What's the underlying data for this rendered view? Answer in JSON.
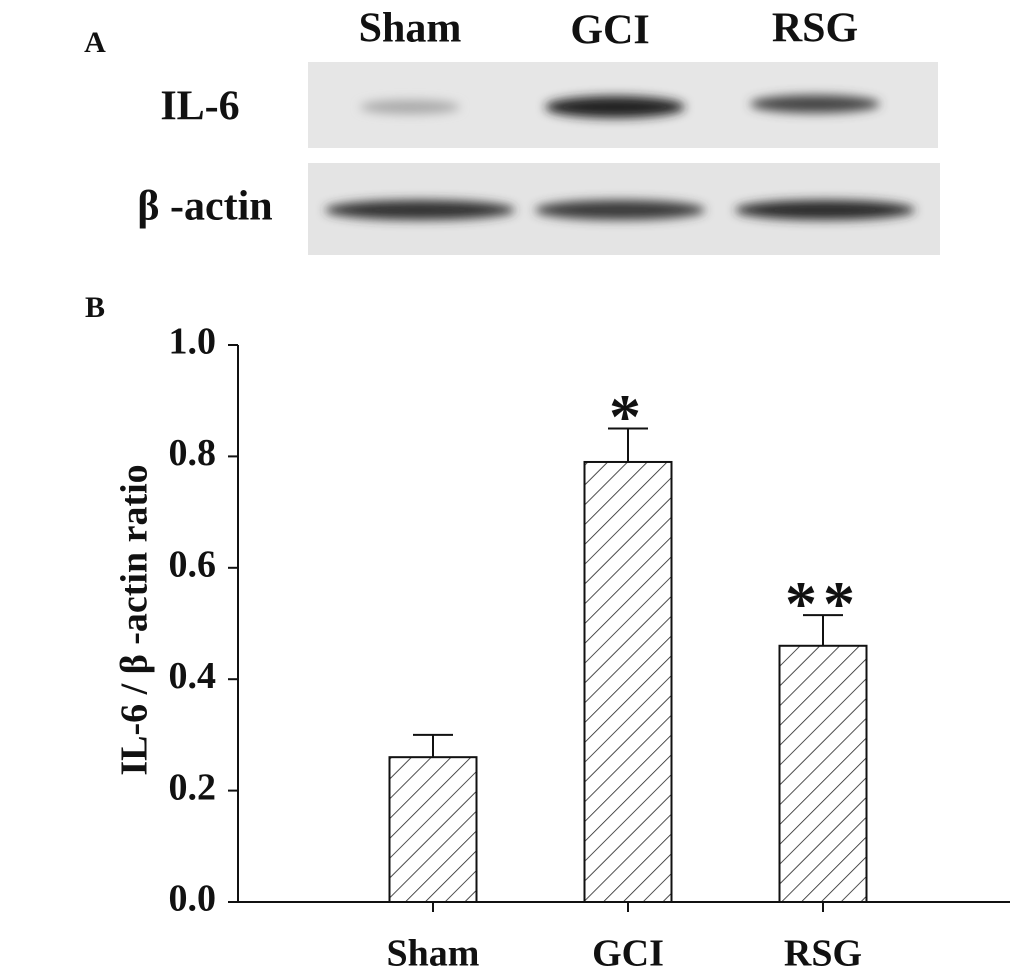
{
  "panel_a": {
    "label": "A",
    "lanes": [
      "Sham",
      "GCI",
      "RSG"
    ],
    "rows": [
      "IL-6",
      "β -actin"
    ]
  },
  "panel_b": {
    "label": "B"
  },
  "chart_data": {
    "type": "bar",
    "y_label": "IL-6 / β -actin ratio",
    "categories": [
      "Sham",
      "GCI",
      "RSG"
    ],
    "values": [
      0.26,
      0.79,
      0.46
    ],
    "errors": [
      0.04,
      0.06,
      0.055
    ],
    "annotations": [
      null,
      "*",
      "**"
    ],
    "color": "#ffffff",
    "hatch": true,
    "ylim": [
      0,
      1.0
    ],
    "yticks": [
      {
        "value": 0,
        "label": "0.0"
      },
      0.2,
      0.4,
      0.6,
      0.8,
      {
        "value": 1.0,
        "label": "1.0"
      }
    ]
  }
}
